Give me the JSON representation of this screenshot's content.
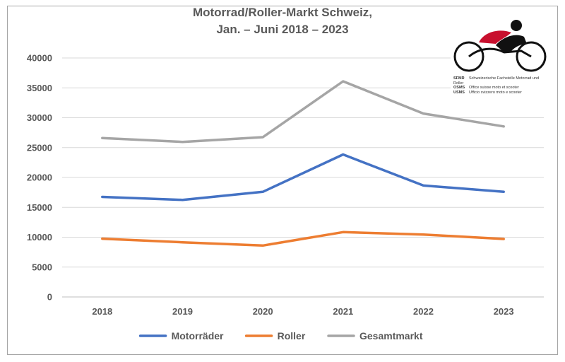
{
  "chart_data": {
    "type": "line",
    "title_line1": "Motorrad/Roller-Markt Schweiz,",
    "title_line2": "Jan. – Juni 2018 – 2023",
    "categories": [
      "2018",
      "2019",
      "2020",
      "2021",
      "2022",
      "2023"
    ],
    "ylim": [
      0,
      40000
    ],
    "yticks": [
      0,
      5000,
      10000,
      15000,
      20000,
      25000,
      30000,
      35000,
      40000
    ],
    "grid": true,
    "legend_position": "bottom",
    "series": [
      {
        "name": "Motorräder",
        "color": "#4472c4",
        "values": [
          16750,
          16250,
          17600,
          23850,
          18650,
          17600
        ]
      },
      {
        "name": "Roller",
        "color": "#ed7d31",
        "values": [
          9750,
          9150,
          8600,
          10850,
          10450,
          9700
        ]
      },
      {
        "name": "Gesamtmarkt",
        "color": "#a5a5a5",
        "values": [
          26600,
          25950,
          26750,
          36100,
          30700,
          28550
        ]
      }
    ]
  },
  "logo": {
    "lines": [
      {
        "abbr": "SFMR",
        "text": "Schweizerische Fachstelle Motorrad und Roller"
      },
      {
        "abbr": "OSMS",
        "text": "Office suisse moto et scooter"
      },
      {
        "abbr": "USMS",
        "text": "Ufficio svizzero moto e scooter"
      }
    ]
  }
}
